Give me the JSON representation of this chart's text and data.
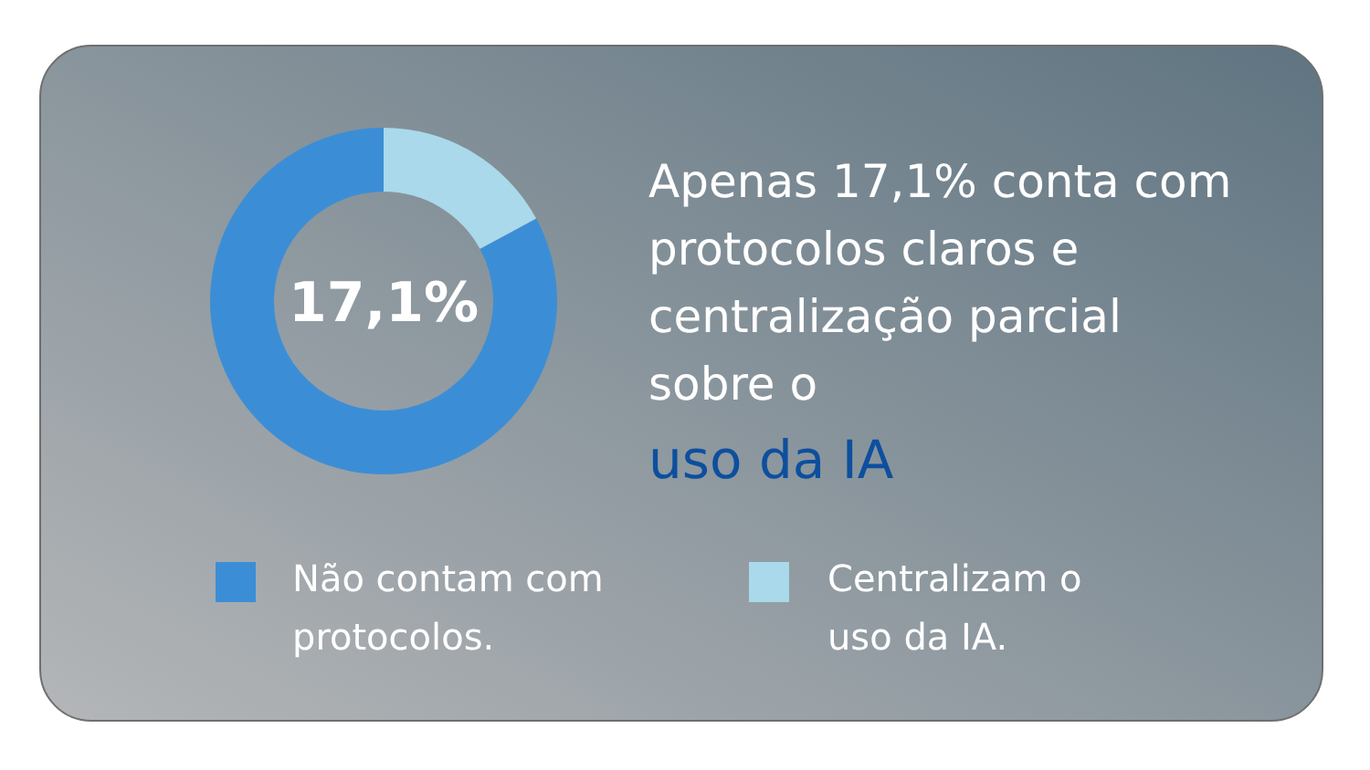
{
  "chart_data": {
    "type": "donut",
    "title": "Apenas 17,1% conta com protocolos claros e centralização parcial sobre o",
    "subtitle": "uso da IA",
    "categories": [
      "Não contam com protocolos.",
      "Centralizam o uso da IA."
    ],
    "values": [
      82.9,
      17.1
    ],
    "colors": [
      "#3b8ed6",
      "#a9d9ea"
    ],
    "annotations": [
      "17,1%"
    ],
    "legend": "bottom"
  }
}
